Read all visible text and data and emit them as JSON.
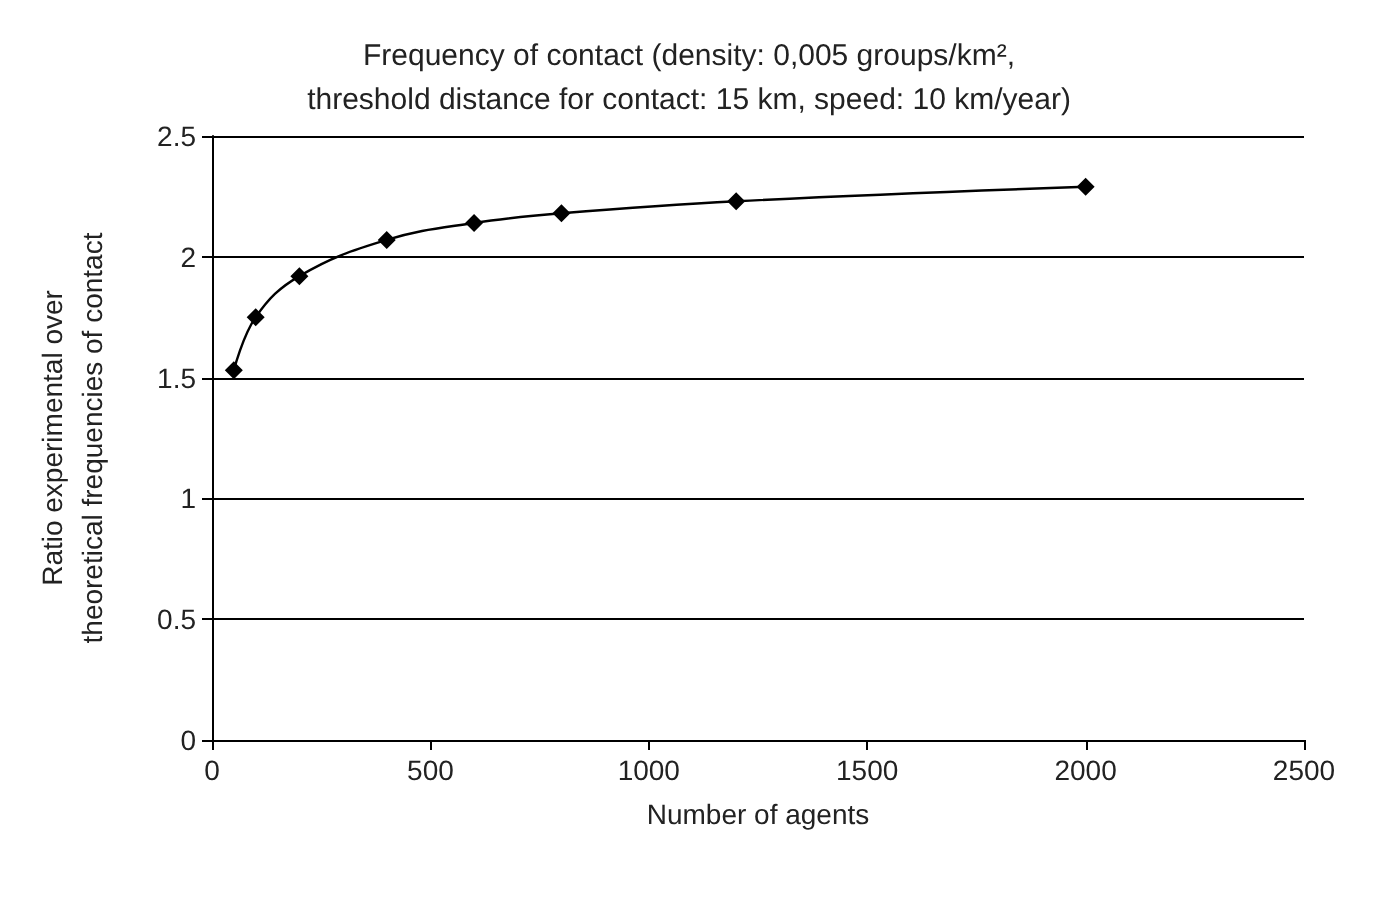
{
  "chart_data": {
    "type": "line",
    "title": "Frequency of contact (density: 0,005 groups/km²,\nthreshold distance for contact: 15 km, speed: 10 km/year)",
    "xlabel": "Number of agents",
    "ylabel": "Ratio experimental over\ntheoretical frequencies of contact",
    "x": [
      50,
      100,
      200,
      400,
      600,
      800,
      1200,
      2000
    ],
    "series": [
      {
        "color": "#000000",
        "values": [
          1.53,
          1.75,
          1.92,
          2.07,
          2.14,
          2.18,
          2.23,
          2.29
        ]
      }
    ],
    "xlim": [
      0,
      2500
    ],
    "xticks": [
      0,
      500,
      1000,
      1500,
      2000,
      2500
    ],
    "ylim": [
      0,
      2.5
    ],
    "yticks": [
      0,
      0.5,
      1,
      1.5,
      2,
      2.5
    ],
    "grid": "y",
    "marker": "diamond",
    "line_style": "solid"
  }
}
